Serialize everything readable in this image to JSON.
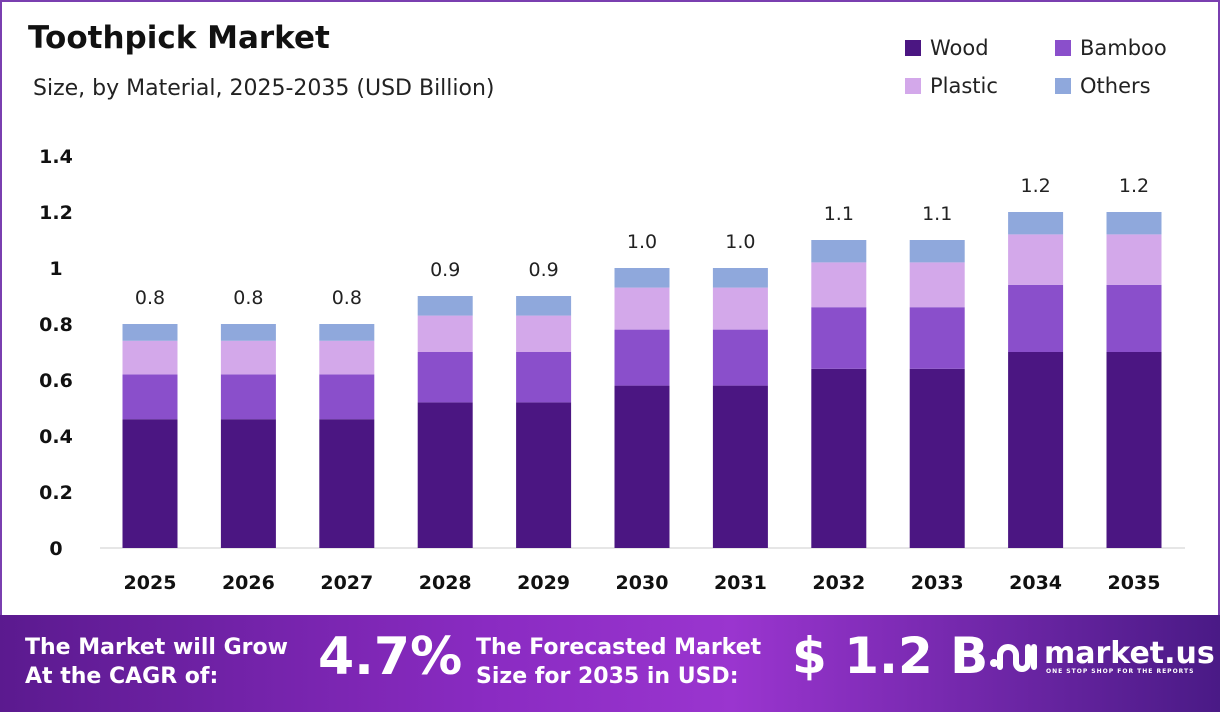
{
  "title": "Toothpick Market",
  "subtitle": "Size, by Material, 2025-2035 (USD Billion)",
  "colors": {
    "Wood": "#4B1682",
    "Bamboo": "#8A4FCB",
    "Plastic": "#D3A8EA",
    "Others": "#8FA8DC"
  },
  "chart_data": {
    "type": "bar",
    "stacked": true,
    "title": "Toothpick Market",
    "subtitle": "Size, by Material, 2025-2035 (USD Billion)",
    "categories": [
      "2025",
      "2026",
      "2027",
      "2028",
      "2029",
      "2030",
      "2031",
      "2032",
      "2033",
      "2034",
      "2035"
    ],
    "series": [
      {
        "name": "Wood",
        "values": [
          0.46,
          0.46,
          0.46,
          0.52,
          0.52,
          0.58,
          0.58,
          0.64,
          0.64,
          0.7,
          0.7
        ]
      },
      {
        "name": "Bamboo",
        "values": [
          0.16,
          0.16,
          0.16,
          0.18,
          0.18,
          0.2,
          0.2,
          0.22,
          0.22,
          0.24,
          0.24
        ]
      },
      {
        "name": "Plastic",
        "values": [
          0.12,
          0.12,
          0.12,
          0.13,
          0.13,
          0.15,
          0.15,
          0.16,
          0.16,
          0.18,
          0.18
        ]
      },
      {
        "name": "Others",
        "values": [
          0.06,
          0.06,
          0.06,
          0.07,
          0.07,
          0.07,
          0.07,
          0.08,
          0.08,
          0.08,
          0.08
        ]
      }
    ],
    "totals": [
      0.8,
      0.8,
      0.8,
      0.9,
      0.9,
      1.0,
      1.0,
      1.1,
      1.1,
      1.2,
      1.2
    ],
    "total_labels": [
      "0.8",
      "0.8",
      "0.8",
      "0.9",
      "0.9",
      "1.0",
      "1.0",
      "1.1",
      "1.1",
      "1.2",
      "1.2"
    ],
    "yticks": [
      "0",
      "0.2",
      "0.4",
      "0.6",
      "0.8",
      "1",
      "1.2",
      "1.4"
    ],
    "ylim": [
      0,
      1.4
    ],
    "grid": false,
    "legend": "top-right"
  },
  "banner": {
    "cagr_label": [
      "The Market will Grow",
      "At the CAGR of:"
    ],
    "cagr_value": "4.7%",
    "forecast_label": [
      "The Forecasted Market",
      "Size for 2035 in USD:"
    ],
    "forecast_value": "$ 1.2 B",
    "logo_text": "market.us",
    "logo_tagline": "ONE STOP SHOP FOR THE REPORTS"
  }
}
